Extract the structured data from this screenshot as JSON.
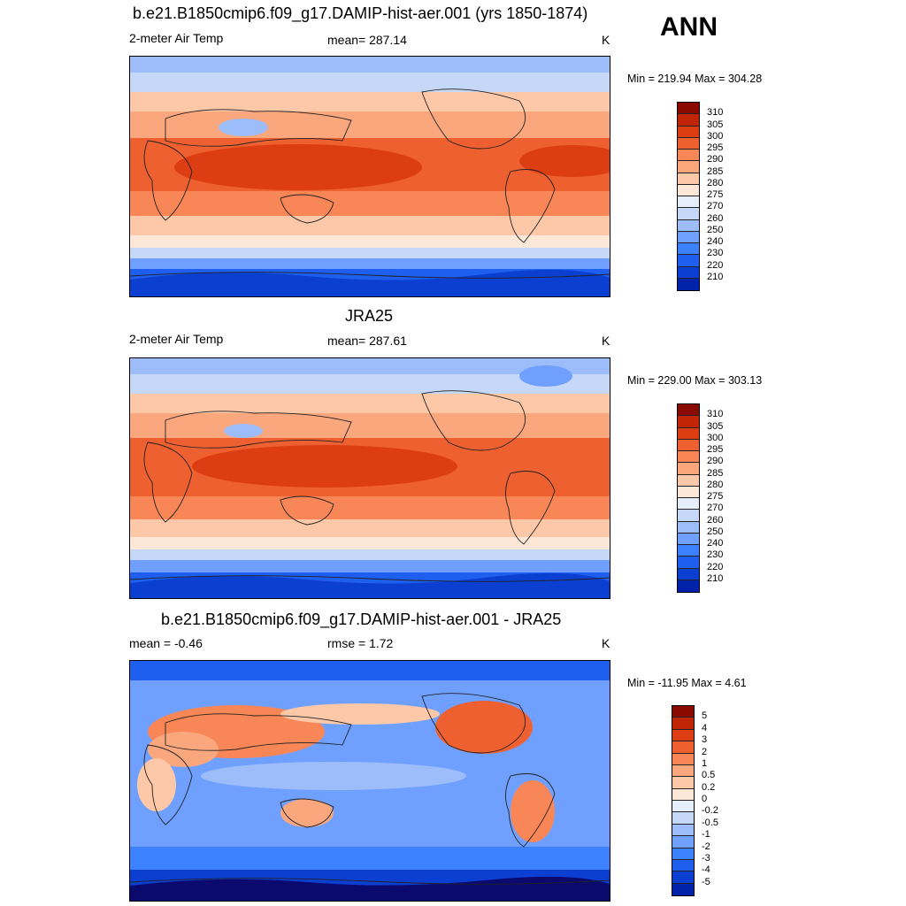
{
  "season": "ANN",
  "colors": {
    "abs_scale": [
      "#0a0a6e",
      "#0022a8",
      "#0a3fd2",
      "#1e5ff0",
      "#3c82ff",
      "#6fa0ff",
      "#9cbcfa",
      "#c6d8f7",
      "#e6eefb",
      "#fde8d8",
      "#fcc8a8",
      "#fba77e",
      "#f88656",
      "#ef6030",
      "#dd3d12",
      "#c22506",
      "#8a0a00"
    ],
    "diff_scale": [
      "#0a0a6e",
      "#0022a8",
      "#0a3fd2",
      "#1e5ff0",
      "#3c82ff",
      "#6fa0ff",
      "#9cbcfa",
      "#c6d8f7",
      "#e6eefb",
      "#fde8d8",
      "#fcc8a8",
      "#fba77e",
      "#f88656",
      "#ef6030",
      "#dd3d12",
      "#c22506",
      "#8a0a00"
    ]
  },
  "panels": [
    {
      "title": "b.e21.B1850cmip6.f09_g17.DAMIP-hist-aer.001 (yrs 1850-1874)",
      "left_label": "2-meter Air Temp",
      "center_label": "mean= 287.14",
      "units": "K",
      "minmax": "Min = 219.94 Max = 304.28",
      "colorbar_labels": [
        "310",
        "305",
        "300",
        "295",
        "290",
        "285",
        "280",
        "275",
        "270",
        "260",
        "250",
        "240",
        "230",
        "220",
        "210"
      ]
    },
    {
      "title": "JRA25",
      "left_label": "2-meter Air Temp",
      "center_label": "mean= 287.61",
      "units": "K",
      "minmax": "Min = 229.00 Max = 303.13",
      "colorbar_labels": [
        "310",
        "305",
        "300",
        "295",
        "290",
        "285",
        "280",
        "275",
        "270",
        "260",
        "250",
        "240",
        "230",
        "220",
        "210"
      ]
    },
    {
      "title": "b.e21.B1850cmip6.f09_g17.DAMIP-hist-aer.001 - JRA25",
      "left_label": "mean =  -0.46",
      "center_label": "rmse =    1.72",
      "units": "K",
      "minmax": "Min = -11.95 Max =   4.61",
      "colorbar_labels": [
        "5",
        "4",
        "3",
        "2",
        "1",
        "0.5",
        "0.2",
        "0",
        "-0.2",
        "-0.5",
        "-1",
        "-2",
        "-3",
        "-4",
        "-5"
      ]
    }
  ],
  "chart_data": [
    {
      "type": "heatmap",
      "title": "b.e21.B1850cmip6.f09_g17.DAMIP-hist-aer.001 (yrs 1850-1874)",
      "variable": "2-meter Air Temp",
      "units": "K",
      "mean": 287.14,
      "min": 219.94,
      "max": 304.28,
      "contour_levels": [
        210,
        220,
        230,
        240,
        250,
        260,
        270,
        275,
        280,
        285,
        290,
        295,
        300,
        305,
        310
      ],
      "map_center_longitude": 180
    },
    {
      "type": "heatmap",
      "title": "JRA25",
      "variable": "2-meter Air Temp",
      "units": "K",
      "mean": 287.61,
      "min": 229.0,
      "max": 303.13,
      "contour_levels": [
        210,
        220,
        230,
        240,
        250,
        260,
        270,
        275,
        280,
        285,
        290,
        295,
        300,
        305,
        310
      ],
      "map_center_longitude": 180
    },
    {
      "type": "heatmap",
      "title": "b.e21.B1850cmip6.f09_g17.DAMIP-hist-aer.001 - JRA25",
      "units": "K",
      "mean": -0.46,
      "rmse": 1.72,
      "min": -11.95,
      "max": 4.61,
      "contour_levels": [
        -5,
        -4,
        -3,
        -2,
        -1,
        -0.5,
        -0.2,
        0,
        0.2,
        0.5,
        1,
        2,
        3,
        4,
        5
      ],
      "map_center_longitude": 180
    }
  ]
}
